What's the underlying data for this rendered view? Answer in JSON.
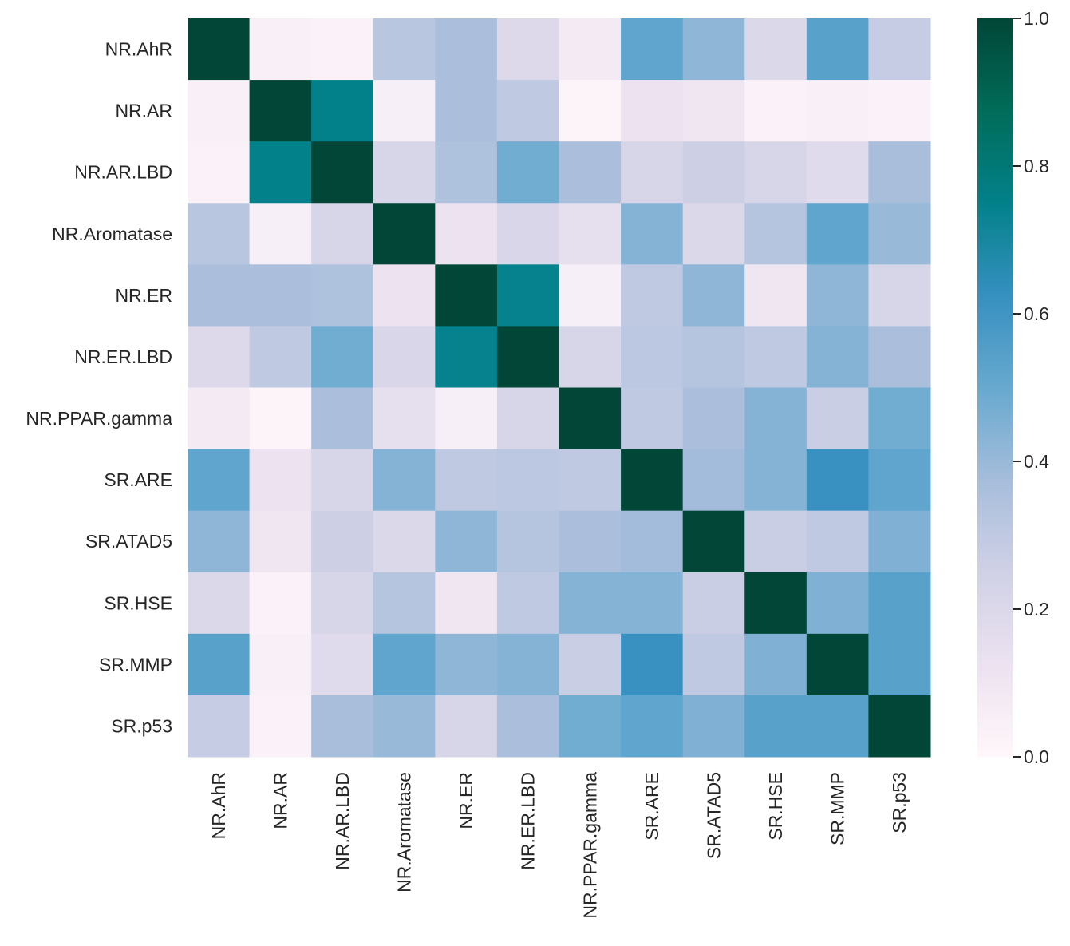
{
  "chart_data": {
    "type": "heatmap",
    "title": "",
    "xlabel": "",
    "ylabel": "",
    "x_labels": [
      "NR.AhR",
      "NR.AR",
      "NR.AR.LBD",
      "NR.Aromatase",
      "NR.ER",
      "NR.ER.LBD",
      "NR.PPAR.gamma",
      "SR.ARE",
      "SR.ATAD5",
      "SR.HSE",
      "SR.MMP",
      "SR.p53"
    ],
    "y_labels": [
      "NR.AhR",
      "NR.AR",
      "NR.AR.LBD",
      "NR.Aromatase",
      "NR.ER",
      "NR.ER.LBD",
      "NR.PPAR.gamma",
      "SR.ARE",
      "SR.ATAD5",
      "SR.HSE",
      "SR.MMP",
      "SR.p53"
    ],
    "values": [
      [
        1.0,
        0.04,
        0.03,
        0.32,
        0.36,
        0.19,
        0.08,
        0.52,
        0.42,
        0.2,
        0.54,
        0.28
      ],
      [
        0.04,
        1.0,
        0.75,
        0.05,
        0.36,
        0.3,
        0.02,
        0.12,
        0.1,
        0.03,
        0.04,
        0.03
      ],
      [
        0.03,
        0.75,
        1.0,
        0.22,
        0.35,
        0.48,
        0.36,
        0.22,
        0.26,
        0.22,
        0.18,
        0.37
      ],
      [
        0.32,
        0.05,
        0.22,
        1.0,
        0.12,
        0.21,
        0.15,
        0.44,
        0.2,
        0.33,
        0.52,
        0.4
      ],
      [
        0.36,
        0.36,
        0.35,
        0.12,
        1.0,
        0.74,
        0.05,
        0.3,
        0.42,
        0.1,
        0.42,
        0.22
      ],
      [
        0.19,
        0.3,
        0.48,
        0.21,
        0.74,
        1.0,
        0.22,
        0.31,
        0.33,
        0.3,
        0.44,
        0.36
      ],
      [
        0.08,
        0.02,
        0.36,
        0.15,
        0.05,
        0.22,
        1.0,
        0.3,
        0.36,
        0.44,
        0.27,
        0.48
      ],
      [
        0.52,
        0.12,
        0.22,
        0.44,
        0.3,
        0.31,
        0.3,
        1.0,
        0.38,
        0.44,
        0.62,
        0.52
      ],
      [
        0.42,
        0.1,
        0.26,
        0.2,
        0.42,
        0.33,
        0.36,
        0.38,
        1.0,
        0.27,
        0.3,
        0.45
      ],
      [
        0.2,
        0.03,
        0.22,
        0.33,
        0.1,
        0.3,
        0.44,
        0.44,
        0.27,
        1.0,
        0.45,
        0.54
      ],
      [
        0.54,
        0.04,
        0.18,
        0.52,
        0.42,
        0.44,
        0.27,
        0.62,
        0.3,
        0.45,
        1.0,
        0.54
      ],
      [
        0.28,
        0.03,
        0.37,
        0.4,
        0.22,
        0.36,
        0.48,
        0.52,
        0.45,
        0.54,
        0.54,
        1.0
      ]
    ],
    "vmin": 0.0,
    "vmax": 1.0,
    "colormap": "PuBuGn",
    "colormap_stops": [
      "#fff7fb",
      "#ece2f0",
      "#d0d1e6",
      "#a6bddb",
      "#67a9cf",
      "#3690c0",
      "#02818a",
      "#016c59",
      "#014636"
    ],
    "colorbar": {
      "placement": "right",
      "ticks": [
        0.0,
        0.2,
        0.4,
        0.6,
        0.8,
        1.0
      ],
      "tick_labels": [
        "0.0",
        "0.2",
        "0.4",
        "0.6",
        "0.8",
        "1.0"
      ]
    },
    "grid": false
  }
}
